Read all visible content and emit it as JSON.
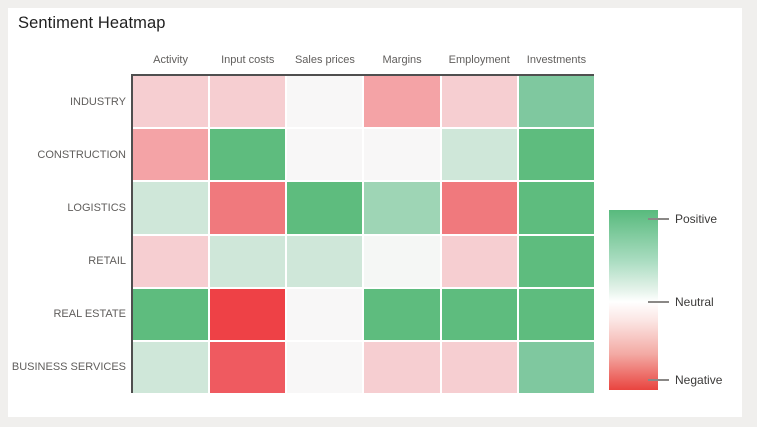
{
  "page": {
    "title": "Sentiment Heatmap"
  },
  "colors": {
    "background": "#f0efed",
    "card": "#ffffff",
    "axis_line": "#4f4f4f",
    "header_text": "#605e5c",
    "title_text": "#1f1f1f",
    "legend_text": "#3b3a39",
    "tick_line": "#8a8886",
    "cell_gap": "#ffffff"
  },
  "legend": {
    "labels": [
      "Positive",
      "Neutral",
      "Negative"
    ],
    "gradient_top": "#58ba7d",
    "gradient_mid": "#ffffff",
    "gradient_bottom": "#e9443f"
  },
  "chart_data": {
    "type": "heatmap",
    "title": "Sentiment Heatmap",
    "columns": [
      "Activity",
      "Input costs",
      "Sales prices",
      "Margins",
      "Employment",
      "Investments"
    ],
    "rows": [
      "INDUSTRY",
      "CONSTRUCTION",
      "LOGISTICS",
      "RETAIL",
      "REAL ESTATE",
      "BUSINESS SERVICES"
    ],
    "scale": {
      "domain": [
        -1,
        1
      ],
      "positive_label": "Positive",
      "neutral_label": "Neutral",
      "negative_label": "Negative",
      "positive_color": "#5ebc7e",
      "neutral_color": "#f8f7f7",
      "negative_color": "#ee4146"
    },
    "values": [
      [
        -0.2,
        -0.2,
        0.0,
        -0.45,
        -0.2,
        0.7
      ],
      [
        -0.45,
        1.0,
        0.0,
        0.0,
        0.2,
        1.0
      ],
      [
        0.2,
        -0.6,
        1.0,
        0.5,
        -0.6,
        1.0
      ],
      [
        -0.2,
        0.2,
        0.2,
        0.05,
        -0.2,
        1.0
      ],
      [
        1.0,
        -1.0,
        0.0,
        1.0,
        1.0,
        1.0
      ],
      [
        0.2,
        -0.75,
        0.0,
        -0.2,
        -0.2,
        0.7
      ]
    ],
    "cell_colors": [
      [
        "#f6ced1",
        "#f6ced1",
        "#f8f7f7",
        "#f4a3a6",
        "#f6ced1",
        "#7fc89f"
      ],
      [
        "#f4a3a6",
        "#5ebc7e",
        "#f8f7f7",
        "#f8f7f7",
        "#cfe7d9",
        "#5ebc7e"
      ],
      [
        "#cfe7d9",
        "#f0797d",
        "#5ebc7e",
        "#9ed5b5",
        "#f0797d",
        "#5ebc7e"
      ],
      [
        "#f6ced1",
        "#cfe7d9",
        "#cfe7d9",
        "#f5f7f5",
        "#f6ced1",
        "#5ebc7e"
      ],
      [
        "#5ebc7e",
        "#ee4146",
        "#f8f7f7",
        "#5ebc7e",
        "#5ebc7e",
        "#5ebc7e"
      ],
      [
        "#cfe7d9",
        "#ef5a60",
        "#f8f7f7",
        "#f6ced1",
        "#f6ced1",
        "#7fc89f"
      ]
    ],
    "layout": {
      "grid_on": false,
      "legend_position": "right",
      "axis_lines": [
        "top",
        "left"
      ]
    }
  }
}
